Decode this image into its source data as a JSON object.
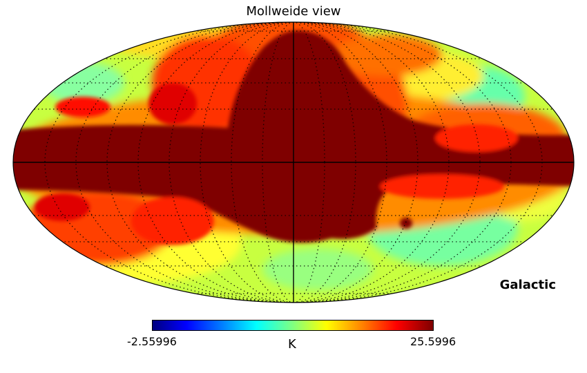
{
  "title": "Mollweide view",
  "coord_system": "Galactic",
  "colorbar": {
    "min_label": "-2.55996",
    "max_label": "25.5996",
    "unit": "K",
    "colormap": "jet"
  },
  "colors": {
    "saturated": "#7f0000",
    "mid": "#ffff00",
    "low": "#66ffaa"
  }
}
